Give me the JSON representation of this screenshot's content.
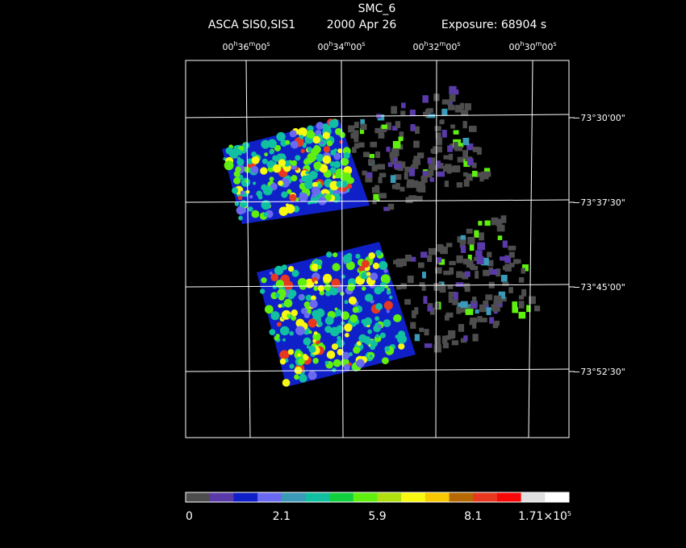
{
  "header": {
    "title": "SMC_6",
    "instrument": "ASCA SIS0,SIS1",
    "date": "2000 Apr 26",
    "exposure": "Exposure: 68904 s"
  },
  "ra_labels": [
    "00h36m00s",
    "00h34m00s",
    "00h32m00s",
    "00h30m00s"
  ],
  "dec_labels": [
    "−73°30'00\"",
    "−73°37'30\"",
    "−73°45'00\"",
    "−73°52'30\""
  ],
  "colorbar": {
    "colors": [
      "#4d4d4d",
      "#5a3aa8",
      "#1020c8",
      "#6a6af0",
      "#3a9ab8",
      "#10c0a0",
      "#10d040",
      "#60f010",
      "#b0e010",
      "#f8f810",
      "#f8c800",
      "#b86800",
      "#e83820",
      "#f80808",
      "#e0e0e0",
      "#ffffff"
    ],
    "labels": [
      "0",
      "2.1",
      "5.9",
      "8.1",
      "1.71×105"
    ]
  }
}
